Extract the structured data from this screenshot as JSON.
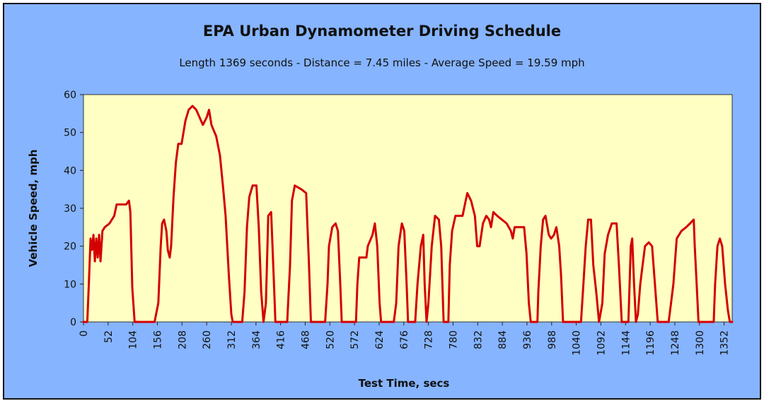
{
  "chart_data": {
    "type": "line",
    "title": "EPA Urban Dynamometer Driving Schedule",
    "subtitle": "Length 1369 seconds - Distance = 7.45 miles - Average Speed = 19.59 mph",
    "xlabel": "Test Time, secs",
    "ylabel": "Vehicle Speed, mph",
    "xlim": [
      0,
      1369
    ],
    "ylim": [
      0,
      60
    ],
    "x_ticks": [
      0,
      52,
      104,
      156,
      208,
      260,
      312,
      364,
      416,
      468,
      520,
      572,
      624,
      676,
      728,
      780,
      832,
      884,
      936,
      988,
      1040,
      1092,
      1144,
      1196,
      1248,
      1300,
      1352
    ],
    "y_ticks": [
      0,
      10,
      20,
      30,
      40,
      50,
      60
    ],
    "grid": false,
    "legend": "none",
    "series": [
      {
        "color": "#d40000",
        "points": [
          [
            0,
            0
          ],
          [
            8,
            0
          ],
          [
            12,
            12
          ],
          [
            15,
            22
          ],
          [
            18,
            19
          ],
          [
            21,
            23
          ],
          [
            24,
            16
          ],
          [
            27,
            22
          ],
          [
            30,
            17
          ],
          [
            33,
            23
          ],
          [
            36,
            16
          ],
          [
            40,
            24
          ],
          [
            45,
            25
          ],
          [
            55,
            26
          ],
          [
            65,
            28
          ],
          [
            70,
            31
          ],
          [
            80,
            31
          ],
          [
            90,
            31
          ],
          [
            96,
            32
          ],
          [
            99,
            29
          ],
          [
            103,
            9
          ],
          [
            108,
            0
          ],
          [
            150,
            0
          ],
          [
            158,
            5
          ],
          [
            163,
            20
          ],
          [
            166,
            26
          ],
          [
            170,
            27
          ],
          [
            175,
            24
          ],
          [
            178,
            19
          ],
          [
            182,
            17
          ],
          [
            185,
            20
          ],
          [
            190,
            33
          ],
          [
            195,
            42
          ],
          [
            200,
            47
          ],
          [
            207,
            47
          ],
          [
            215,
            53
          ],
          [
            222,
            56
          ],
          [
            230,
            57
          ],
          [
            238,
            56
          ],
          [
            245,
            54
          ],
          [
            252,
            52
          ],
          [
            260,
            54
          ],
          [
            265,
            56
          ],
          [
            270,
            52
          ],
          [
            280,
            49
          ],
          [
            288,
            44
          ],
          [
            295,
            35
          ],
          [
            300,
            28
          ],
          [
            307,
            12
          ],
          [
            312,
            2
          ],
          [
            315,
            0
          ],
          [
            335,
            0
          ],
          [
            340,
            8
          ],
          [
            345,
            25
          ],
          [
            350,
            33
          ],
          [
            357,
            36
          ],
          [
            365,
            36
          ],
          [
            370,
            25
          ],
          [
            375,
            8
          ],
          [
            380,
            0
          ],
          [
            385,
            5
          ],
          [
            390,
            28
          ],
          [
            396,
            29
          ],
          [
            402,
            10
          ],
          [
            405,
            0
          ],
          [
            430,
            0
          ],
          [
            436,
            15
          ],
          [
            440,
            32
          ],
          [
            446,
            36
          ],
          [
            460,
            35
          ],
          [
            470,
            34
          ],
          [
            476,
            15
          ],
          [
            480,
            0
          ],
          [
            510,
            0
          ],
          [
            515,
            10
          ],
          [
            518,
            20
          ],
          [
            525,
            25
          ],
          [
            532,
            26
          ],
          [
            537,
            24
          ],
          [
            542,
            10
          ],
          [
            545,
            0
          ],
          [
            575,
            0
          ],
          [
            578,
            10
          ],
          [
            582,
            17
          ],
          [
            588,
            17
          ],
          [
            597,
            17
          ],
          [
            600,
            20
          ],
          [
            610,
            23
          ],
          [
            615,
            26
          ],
          [
            620,
            20
          ],
          [
            625,
            5
          ],
          [
            628,
            0
          ],
          [
            640,
            0
          ],
          [
            655,
            0
          ],
          [
            660,
            5
          ],
          [
            665,
            20
          ],
          [
            672,
            26
          ],
          [
            677,
            24
          ],
          [
            682,
            10
          ],
          [
            685,
            0
          ],
          [
            700,
            0
          ],
          [
            705,
            10
          ],
          [
            712,
            20
          ],
          [
            717,
            23
          ],
          [
            720,
            10
          ],
          [
            724,
            0
          ],
          [
            728,
            5
          ],
          [
            735,
            20
          ],
          [
            742,
            28
          ],
          [
            750,
            27
          ],
          [
            755,
            20
          ],
          [
            760,
            0
          ],
          [
            770,
            0
          ],
          [
            773,
            15
          ],
          [
            778,
            24
          ],
          [
            785,
            28
          ],
          [
            800,
            28
          ],
          [
            805,
            31
          ],
          [
            810,
            34
          ],
          [
            818,
            32
          ],
          [
            826,
            28
          ],
          [
            831,
            20
          ],
          [
            836,
            20
          ],
          [
            843,
            26
          ],
          [
            850,
            28
          ],
          [
            856,
            27
          ],
          [
            860,
            25
          ],
          [
            865,
            29
          ],
          [
            873,
            28
          ],
          [
            883,
            27
          ],
          [
            893,
            26
          ],
          [
            902,
            24
          ],
          [
            906,
            22
          ],
          [
            910,
            25
          ],
          [
            920,
            25
          ],
          [
            930,
            25
          ],
          [
            935,
            18
          ],
          [
            940,
            5
          ],
          [
            944,
            0
          ],
          [
            958,
            0
          ],
          [
            960,
            8
          ],
          [
            965,
            20
          ],
          [
            970,
            27
          ],
          [
            975,
            28
          ],
          [
            982,
            23
          ],
          [
            987,
            22
          ],
          [
            993,
            23
          ],
          [
            998,
            25
          ],
          [
            1004,
            20
          ],
          [
            1008,
            12
          ],
          [
            1012,
            0
          ],
          [
            1050,
            0
          ],
          [
            1055,
            10
          ],
          [
            1060,
            20
          ],
          [
            1065,
            27
          ],
          [
            1071,
            27
          ],
          [
            1076,
            15
          ],
          [
            1082,
            8
          ],
          [
            1088,
            0
          ],
          [
            1095,
            5
          ],
          [
            1100,
            18
          ],
          [
            1107,
            23
          ],
          [
            1115,
            26
          ],
          [
            1125,
            26
          ],
          [
            1130,
            15
          ],
          [
            1136,
            0
          ],
          [
            1150,
            0
          ],
          [
            1155,
            20
          ],
          [
            1158,
            22
          ],
          [
            1162,
            10
          ],
          [
            1166,
            0
          ],
          [
            1170,
            2
          ],
          [
            1175,
            10
          ],
          [
            1180,
            15
          ],
          [
            1185,
            20
          ],
          [
            1193,
            21
          ],
          [
            1200,
            20
          ],
          [
            1206,
            10
          ],
          [
            1212,
            0
          ],
          [
            1235,
            0
          ],
          [
            1240,
            5
          ],
          [
            1245,
            10
          ],
          [
            1252,
            22
          ],
          [
            1262,
            24
          ],
          [
            1272,
            25
          ],
          [
            1280,
            26
          ],
          [
            1288,
            27
          ],
          [
            1290,
            20
          ],
          [
            1294,
            10
          ],
          [
            1298,
            0
          ],
          [
            1330,
            0
          ],
          [
            1333,
            10
          ],
          [
            1338,
            20
          ],
          [
            1343,
            22
          ],
          [
            1348,
            20
          ],
          [
            1354,
            10
          ],
          [
            1360,
            3
          ],
          [
            1364,
            0
          ],
          [
            1369,
            0
          ]
        ]
      }
    ]
  }
}
